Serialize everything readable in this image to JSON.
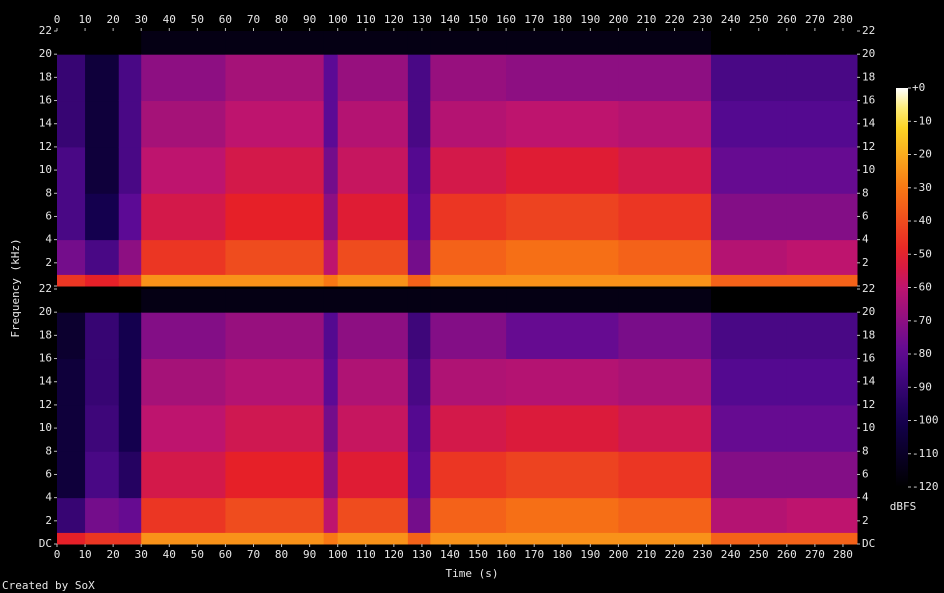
{
  "chart_data": {
    "type": "heatmap",
    "x_label": "Time (s)",
    "y_label": "Frequency (kHz)",
    "colorbar_label": "dBFS",
    "footer": "Created by SoX",
    "xlim": [
      0,
      285
    ],
    "xticks": [
      0,
      10,
      20,
      30,
      40,
      50,
      60,
      70,
      80,
      90,
      100,
      110,
      120,
      130,
      140,
      150,
      160,
      170,
      180,
      190,
      200,
      210,
      220,
      230,
      240,
      250,
      260,
      270,
      280
    ],
    "ylim": [
      0,
      22
    ],
    "yticks": [
      {
        "value": 0,
        "label": "DC"
      },
      2,
      4,
      6,
      8,
      10,
      12,
      14,
      16,
      18,
      20,
      22
    ],
    "clim": [
      -120,
      0
    ],
    "cticks": [
      {
        "value": 0,
        "label": "+0"
      },
      -10,
      -20,
      -30,
      -40,
      -50,
      -60,
      -70,
      -80,
      -90,
      -100,
      -110,
      -120
    ],
    "x_edges": [
      0,
      10,
      22,
      30,
      60,
      95,
      100,
      125,
      133,
      160,
      200,
      233,
      260,
      285
    ],
    "y_edges": [
      0,
      1,
      4,
      8,
      12,
      16,
      20,
      22
    ],
    "channels": [
      {
        "values": [
          [
            -45,
            -75,
            -85,
            -85,
            -90,
            -90,
            -120
          ],
          [
            -50,
            -85,
            -100,
            -105,
            -105,
            -105,
            -120
          ],
          [
            -45,
            -70,
            -80,
            -85,
            -85,
            -85,
            -120
          ],
          [
            -25,
            -45,
            -55,
            -60,
            -65,
            -70,
            -115
          ],
          [
            -25,
            -40,
            -50,
            -55,
            -60,
            -65,
            -115
          ],
          [
            -30,
            -60,
            -70,
            -75,
            -80,
            -80,
            -115
          ],
          [
            -25,
            -40,
            -52,
            -58,
            -62,
            -68,
            -115
          ],
          [
            -35,
            -75,
            -80,
            -82,
            -85,
            -85,
            -115
          ],
          [
            -25,
            -35,
            -45,
            -55,
            -62,
            -68,
            -115
          ],
          [
            -25,
            -32,
            -42,
            -52,
            -60,
            -70,
            -115
          ],
          [
            -25,
            -35,
            -45,
            -55,
            -62,
            -70,
            -115
          ],
          [
            -35,
            -62,
            -72,
            -78,
            -82,
            -85,
            -120
          ],
          [
            -35,
            -60,
            -72,
            -78,
            -82,
            -85,
            -120
          ]
        ]
      },
      {
        "values": [
          [
            -50,
            -90,
            -105,
            -105,
            -105,
            -108,
            -120
          ],
          [
            -45,
            -75,
            -85,
            -88,
            -90,
            -90,
            -120
          ],
          [
            -45,
            -78,
            -95,
            -100,
            -100,
            -100,
            -120
          ],
          [
            -25,
            -45,
            -55,
            -60,
            -65,
            -72,
            -115
          ],
          [
            -25,
            -40,
            -50,
            -56,
            -62,
            -68,
            -115
          ],
          [
            -30,
            -60,
            -70,
            -75,
            -80,
            -82,
            -115
          ],
          [
            -25,
            -40,
            -52,
            -58,
            -63,
            -70,
            -115
          ],
          [
            -35,
            -75,
            -80,
            -82,
            -85,
            -88,
            -115
          ],
          [
            -25,
            -35,
            -45,
            -55,
            -63,
            -72,
            -115
          ],
          [
            -25,
            -32,
            -42,
            -53,
            -62,
            -78,
            -115
          ],
          [
            -25,
            -35,
            -45,
            -56,
            -64,
            -74,
            -115
          ],
          [
            -35,
            -62,
            -72,
            -78,
            -82,
            -85,
            -120
          ],
          [
            -35,
            -60,
            -72,
            -78,
            -82,
            -85,
            -120
          ]
        ]
      }
    ]
  }
}
